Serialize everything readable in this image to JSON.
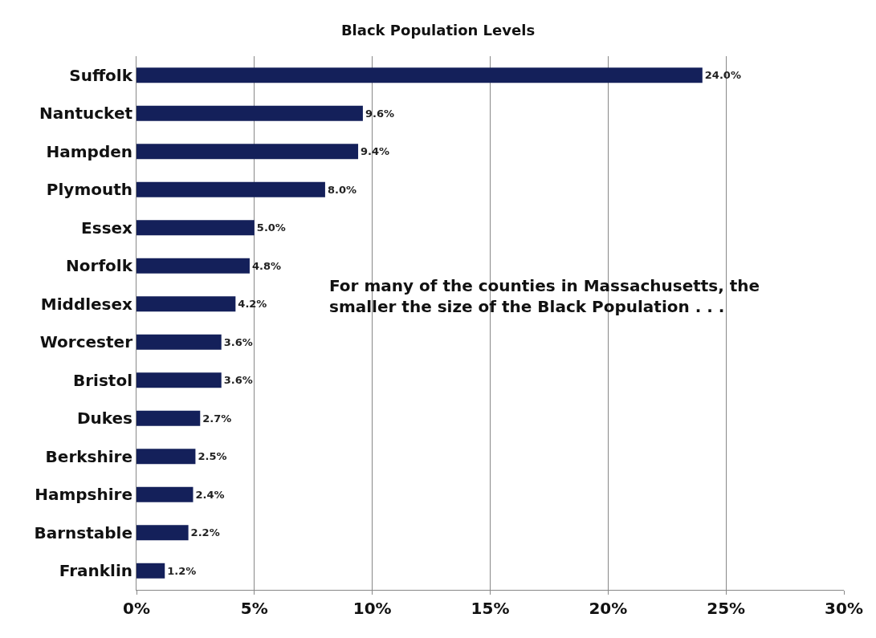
{
  "chart_data": {
    "type": "bar",
    "orientation": "horizontal",
    "title": "Black Population Levels",
    "categories": [
      "Suffolk",
      "Nantucket",
      "Hampden",
      "Plymouth",
      "Essex",
      "Norfolk",
      "Middlesex",
      "Worcester",
      "Bristol",
      "Dukes",
      "Berkshire",
      "Hampshire",
      "Barnstable",
      "Franklin"
    ],
    "values": [
      24.0,
      9.6,
      9.4,
      8.0,
      5.0,
      4.8,
      4.2,
      3.6,
      3.6,
      2.7,
      2.5,
      2.4,
      2.2,
      1.2
    ],
    "value_labels": [
      "24.0%",
      "9.6%",
      "9.4%",
      "8.0%",
      "5.0%",
      "4.8%",
      "4.2%",
      "3.6%",
      "3.6%",
      "2.7%",
      "2.5%",
      "2.4%",
      "2.2%",
      "1.2%"
    ],
    "color": "#14205a",
    "xlim": [
      0,
      30
    ],
    "xticks": [
      {
        "value": 0,
        "label": "0%"
      },
      {
        "value": 5,
        "label": "5%"
      },
      {
        "value": 10,
        "label": "10%"
      },
      {
        "value": 15,
        "label": "15%"
      },
      {
        "value": 20,
        "label": "20%"
      },
      {
        "value": 25,
        "label": "25%"
      },
      {
        "value": 30,
        "label": "30%"
      }
    ],
    "grid": "x",
    "legend": false,
    "annotations": [
      "For many of the counties in Massachusetts, the\nsmaller the size of the Black Population . . ."
    ]
  }
}
